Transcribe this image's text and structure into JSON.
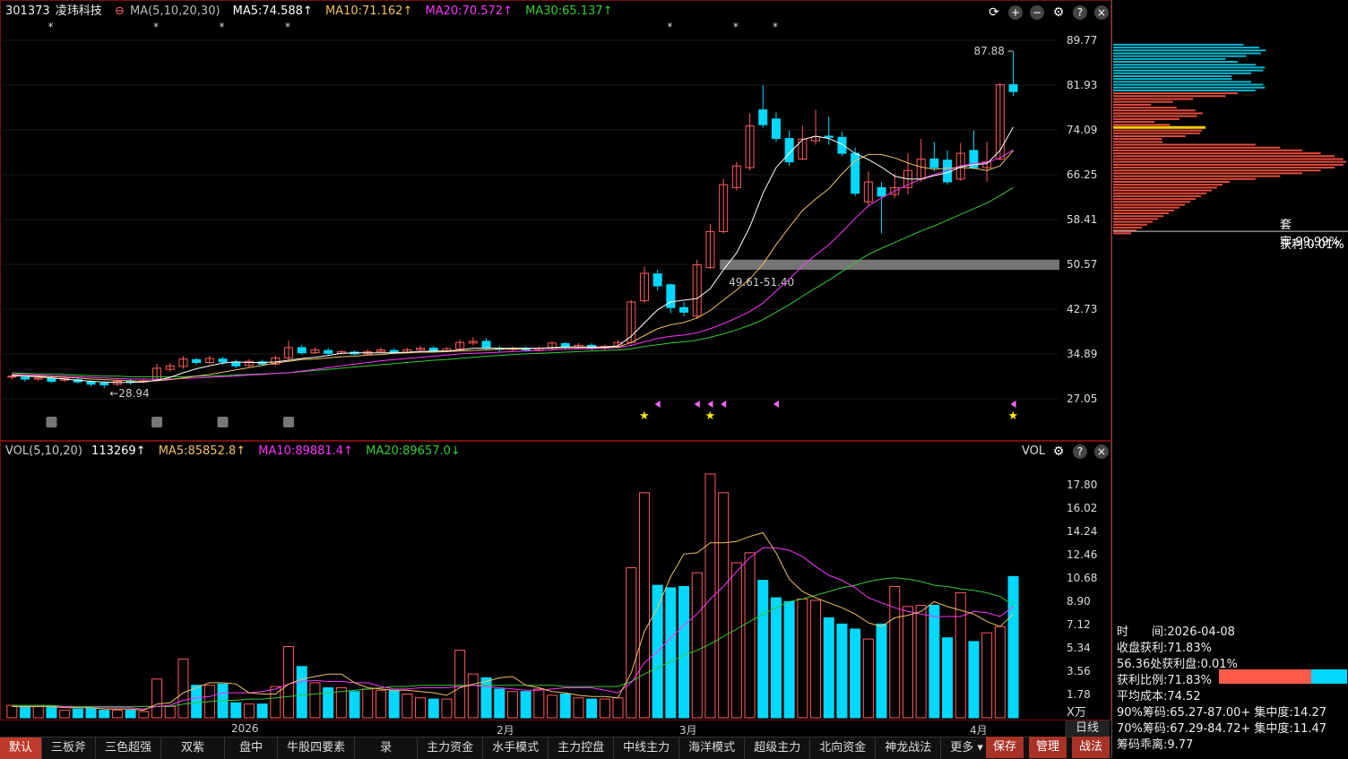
{
  "header": {
    "code": "301373",
    "name": "凌玮科技",
    "ma_label": "MA(5,10,20,30)",
    "ma5": "MA5:74.588↑",
    "ma10": "MA10:71.162↑",
    "ma20": "MA20:70.572↑",
    "ma30": "MA30:65.137↑"
  },
  "vol_header": {
    "label": "VOL(5,10,20)",
    "value": "113269↑",
    "ma5": "MA5:85852.8↑",
    "ma10": "MA10:89881.4↑",
    "ma20": "MA20:89657.0↓",
    "right_label": "VOL"
  },
  "colors": {
    "up": "#ff5b5b",
    "down": "#00d8ff",
    "ma5": "#ffffff",
    "ma10": "#f0c060",
    "ma20": "#ff33ff",
    "ma30": "#33cc33",
    "zone": "#888888"
  },
  "chart_data": {
    "type": "candlestick",
    "price_ticks": [
      "89.77",
      "81.93",
      "74.09",
      "66.25",
      "58.41",
      "50.57",
      "42.73",
      "34.89",
      "27.05"
    ],
    "vol_ticks": [
      "17.80",
      "16.02",
      "14.24",
      "12.46",
      "10.68",
      "8.90",
      "7.12",
      "5.34",
      "3.56",
      "1.78"
    ],
    "vol_unit": "X万",
    "x_labels": [
      "2026",
      "2月",
      "3月",
      "4月"
    ],
    "annotations": {
      "high": "87.88",
      "low": "28.94",
      "zone": "49.61-51.40"
    },
    "zone_range": [
      49.61,
      51.4
    ],
    "price_range": [
      22.0,
      93.0
    ],
    "vol_range": [
      0,
      19.5
    ],
    "candles": [
      [
        30.9,
        31.0,
        30.4,
        31.3,
        1.0
      ],
      [
        30.8,
        30.5,
        30.1,
        31.1,
        0.9
      ],
      [
        30.5,
        30.7,
        30.2,
        31.0,
        0.9
      ],
      [
        30.6,
        30.1,
        29.8,
        30.9,
        0.9
      ],
      [
        30.3,
        30.6,
        30.0,
        30.9,
        0.6
      ],
      [
        30.4,
        30.0,
        29.7,
        30.7,
        0.7
      ],
      [
        30.0,
        29.6,
        29.2,
        30.3,
        0.8
      ],
      [
        29.8,
        29.5,
        28.94,
        30.1,
        0.6
      ],
      [
        29.6,
        30.1,
        29.3,
        30.4,
        0.6
      ],
      [
        30.1,
        29.9,
        29.5,
        30.6,
        0.6
      ],
      [
        30.0,
        30.2,
        29.8,
        30.5,
        0.5
      ],
      [
        30.3,
        32.4,
        30.1,
        33.2,
        3.1
      ],
      [
        32.2,
        32.8,
        31.8,
        33.3,
        0.9
      ],
      [
        32.7,
        34.0,
        32.3,
        34.5,
        4.7
      ],
      [
        33.9,
        33.4,
        33.0,
        34.2,
        2.6
      ],
      [
        33.4,
        34.1,
        33.1,
        34.6,
        2.6
      ],
      [
        34.0,
        33.5,
        33.0,
        34.4,
        2.7
      ],
      [
        33.5,
        32.8,
        32.4,
        33.9,
        1.2
      ],
      [
        32.9,
        33.6,
        32.6,
        34.0,
        1.1
      ],
      [
        33.5,
        33.1,
        32.8,
        33.9,
        1.1
      ],
      [
        33.1,
        34.2,
        32.9,
        34.6,
        2.5
      ],
      [
        34.2,
        36.0,
        33.9,
        37.2,
        5.7
      ],
      [
        36.0,
        35.1,
        34.8,
        36.5,
        4.1
      ],
      [
        35.1,
        35.6,
        34.9,
        36.0,
        2.8
      ],
      [
        35.5,
        35.0,
        34.6,
        35.9,
        2.4
      ],
      [
        35.0,
        35.3,
        34.8,
        35.6,
        2.4
      ],
      [
        35.2,
        34.9,
        34.6,
        35.5,
        2.1
      ],
      [
        34.9,
        35.3,
        34.7,
        35.7,
        2.3
      ],
      [
        35.3,
        35.6,
        35.0,
        36.0,
        2.2
      ],
      [
        35.5,
        35.2,
        34.9,
        35.9,
        2.2
      ],
      [
        35.2,
        35.6,
        35.0,
        36.0,
        1.9
      ],
      [
        35.6,
        35.9,
        35.3,
        36.3,
        1.6
      ],
      [
        35.9,
        35.4,
        35.1,
        36.3,
        1.5
      ],
      [
        35.4,
        35.8,
        35.2,
        36.1,
        1.5
      ],
      [
        35.8,
        36.9,
        35.6,
        37.4,
        5.4
      ],
      [
        36.8,
        37.1,
        36.4,
        37.8,
        3.5
      ],
      [
        37.1,
        35.9,
        35.6,
        37.7,
        3.2
      ],
      [
        35.9,
        35.7,
        35.3,
        36.3,
        2.3
      ],
      [
        35.7,
        35.9,
        35.4,
        36.2,
        2.1
      ],
      [
        35.9,
        35.6,
        35.3,
        36.2,
        2.1
      ],
      [
        35.6,
        35.9,
        35.3,
        36.2,
        2.3
      ],
      [
        35.9,
        36.8,
        35.7,
        37.1,
        1.8
      ],
      [
        36.7,
        36.0,
        35.6,
        37.0,
        1.9
      ],
      [
        36.0,
        36.4,
        35.7,
        36.8,
        1.6
      ],
      [
        36.4,
        35.9,
        35.6,
        36.8,
        1.5
      ],
      [
        35.9,
        36.2,
        35.6,
        36.5,
        1.5
      ],
      [
        36.2,
        36.9,
        35.9,
        37.3,
        1.6
      ],
      [
        36.9,
        44.0,
        36.7,
        44.3,
        12.0
      ],
      [
        44.2,
        49.0,
        43.8,
        50.2,
        18.0
      ],
      [
        48.9,
        46.8,
        46.0,
        49.6,
        10.6
      ],
      [
        47.0,
        43.0,
        42.0,
        47.2,
        10.4
      ],
      [
        43.0,
        42.2,
        41.5,
        44.0,
        10.5
      ],
      [
        41.5,
        50.5,
        41.0,
        51.4,
        11.6
      ],
      [
        50.0,
        56.3,
        49.8,
        57.6,
        19.5
      ],
      [
        56.3,
        64.5,
        56.0,
        65.5,
        18.0
      ],
      [
        64.0,
        67.8,
        63.5,
        68.5,
        12.4
      ],
      [
        67.5,
        74.8,
        67.0,
        77.0,
        13.2
      ],
      [
        77.6,
        75.0,
        74.5,
        82.0,
        11.0
      ],
      [
        76.0,
        72.6,
        72.0,
        77.2,
        9.6
      ],
      [
        72.6,
        68.5,
        67.8,
        74.0,
        9.3
      ],
      [
        69.0,
        72.5,
        68.8,
        74.8,
        9.5
      ],
      [
        72.2,
        72.9,
        71.5,
        77.6,
        9.4
      ],
      [
        73.0,
        72.8,
        71.5,
        76.4,
        8.0
      ],
      [
        72.8,
        70.0,
        69.5,
        73.8,
        7.5
      ],
      [
        70.0,
        63.0,
        62.5,
        71.0,
        7.1
      ],
      [
        61.5,
        65.0,
        60.8,
        66.8,
        6.3
      ],
      [
        64.0,
        62.5,
        56.0,
        65.0,
        7.5
      ],
      [
        62.8,
        64.0,
        62.2,
        66.5,
        10.5
      ],
      [
        64.0,
        67.0,
        62.8,
        70.0,
        8.9
      ],
      [
        65.5,
        69.0,
        65.0,
        72.5,
        9.0
      ],
      [
        69.0,
        67.5,
        66.8,
        72.0,
        9.0
      ],
      [
        68.8,
        65.0,
        64.5,
        70.5,
        6.4
      ],
      [
        65.5,
        70.0,
        65.2,
        71.8,
        10.0
      ],
      [
        70.5,
        67.5,
        67.2,
        74.0,
        6.1
      ],
      [
        67.5,
        68.5,
        65.0,
        72.0,
        6.8
      ],
      [
        69.0,
        82.0,
        68.8,
        82.3,
        7.3
      ],
      [
        82.0,
        80.8,
        80.0,
        87.88,
        11.3
      ]
    ],
    "ma5": [
      31.1,
      31.0,
      30.9,
      30.7,
      30.5,
      30.3,
      30.1,
      30.0,
      29.9,
      29.9,
      30.0,
      30.3,
      30.8,
      31.6,
      32.3,
      32.8,
      33.3,
      33.5,
      33.4,
      33.4,
      33.5,
      33.8,
      34.1,
      34.3,
      34.6,
      35.0,
      35.1,
      35.1,
      35.1,
      35.1,
      35.2,
      35.3,
      35.4,
      35.4,
      35.6,
      35.9,
      35.9,
      35.9,
      35.9,
      35.9,
      35.9,
      36.0,
      36.1,
      36.1,
      36.1,
      36.1,
      36.3,
      38.0,
      40.3,
      42.6,
      44.0,
      44.3,
      44.6,
      46.3,
      49.6,
      52.6,
      57.1,
      63.0,
      67.5,
      70.0,
      72.4,
      73.0,
      72.6,
      71.6,
      70.0,
      68.9,
      67.6,
      66.0,
      65.5,
      65.5,
      66.1,
      66.6,
      67.6,
      68.0,
      68.2,
      70.5,
      74.6
    ],
    "ma10": [
      31.2,
      31.1,
      31.0,
      30.9,
      30.8,
      30.7,
      30.5,
      30.4,
      30.3,
      30.2,
      30.1,
      30.2,
      30.4,
      30.7,
      31.0,
      31.3,
      31.7,
      32.1,
      32.5,
      32.9,
      33.3,
      33.6,
      33.9,
      34.0,
      34.2,
      34.4,
      34.5,
      34.7,
      34.8,
      35.0,
      35.1,
      35.2,
      35.2,
      35.3,
      35.4,
      35.5,
      35.6,
      35.7,
      35.7,
      35.8,
      35.9,
      35.9,
      36.0,
      36.0,
      36.0,
      36.0,
      36.1,
      36.9,
      38.1,
      39.3,
      40.0,
      40.4,
      41.2,
      42.5,
      44.3,
      46.1,
      48.0,
      50.6,
      54.0,
      57.1,
      60.0,
      62.0,
      63.8,
      66.4,
      68.7,
      69.8,
      69.8,
      69.2,
      68.3,
      67.6,
      67.2,
      67.4,
      67.5,
      67.4,
      67.0,
      67.8,
      70.5
    ],
    "ma20": [
      31.4,
      31.3,
      31.2,
      31.1,
      31.0,
      30.9,
      30.8,
      30.7,
      30.6,
      30.5,
      30.5,
      30.5,
      30.5,
      30.6,
      30.7,
      30.8,
      30.9,
      31.0,
      31.2,
      31.3,
      31.5,
      31.6,
      31.9,
      32.2,
      32.5,
      32.8,
      33.1,
      33.4,
      33.7,
      33.9,
      34.1,
      34.3,
      34.5,
      34.7,
      34.9,
      35.0,
      35.1,
      35.2,
      35.3,
      35.4,
      35.5,
      35.6,
      35.7,
      35.8,
      35.8,
      35.9,
      36.0,
      36.4,
      37.0,
      37.6,
      38.0,
      38.2,
      38.6,
      39.3,
      40.2,
      41.2,
      42.3,
      43.8,
      45.9,
      48.0,
      50.3,
      52.2,
      54.0,
      56.2,
      58.6,
      60.8,
      62.2,
      63.4,
      64.5,
      65.5,
      66.3,
      67.0,
      67.8,
      68.2,
      68.4,
      69.2,
      70.6
    ],
    "ma30": [
      31.6,
      31.5,
      31.4,
      31.4,
      31.3,
      31.2,
      31.1,
      31.0,
      31.0,
      30.9,
      30.9,
      30.9,
      30.9,
      30.9,
      31.0,
      31.0,
      31.1,
      31.2,
      31.3,
      31.4,
      31.5,
      31.6,
      31.8,
      32.0,
      32.2,
      32.4,
      32.6,
      32.8,
      33.0,
      33.2,
      33.4,
      33.6,
      33.8,
      33.9,
      34.1,
      34.3,
      34.5,
      34.6,
      34.8,
      34.9,
      35.0,
      35.1,
      35.2,
      35.3,
      35.4,
      35.5,
      35.6,
      35.8,
      36.2,
      36.5,
      36.8,
      37.0,
      37.3,
      37.8,
      38.4,
      39.1,
      39.9,
      40.9,
      42.2,
      43.5,
      45.0,
      46.4,
      47.8,
      49.3,
      50.9,
      52.3,
      53.4,
      54.4,
      55.4,
      56.4,
      57.3,
      58.3,
      59.3,
      60.3,
      61.3,
      62.6,
      64.0
    ],
    "vma5": [
      0.9,
      0.9,
      0.9,
      0.9,
      0.8,
      0.8,
      0.8,
      0.7,
      0.7,
      0.7,
      0.6,
      1.1,
      1.2,
      2.0,
      2.4,
      2.8,
      2.8,
      2.7,
      2.0,
      1.9,
      1.9,
      2.7,
      3.1,
      3.3,
      3.5,
      3.5,
      2.8,
      2.4,
      2.3,
      2.2,
      2.2,
      2.1,
      2.0,
      1.8,
      2.4,
      2.7,
      2.9,
      3.2,
      3.3,
      2.6,
      2.4,
      2.1,
      2.0,
      1.8,
      1.7,
      1.7,
      1.6,
      3.6,
      6.9,
      8.8,
      11.3,
      13.1,
      13.2,
      14.0,
      14.0,
      14.1,
      14.5,
      14.8,
      13.2,
      11.1,
      10.1,
      9.6,
      9.2,
      8.8,
      8.3,
      7.6,
      7.3,
      8.0,
      8.2,
      8.5,
      9.3,
      8.9,
      8.6,
      8.3,
      7.7,
      7.3,
      8.3
    ],
    "vma10": [
      0.9,
      0.9,
      0.9,
      0.9,
      0.9,
      0.8,
      0.8,
      0.8,
      0.8,
      0.8,
      0.7,
      0.9,
      1.0,
      1.4,
      1.6,
      1.7,
      2.0,
      2.0,
      2.0,
      2.1,
      2.3,
      2.7,
      2.9,
      3.0,
      2.9,
      2.9,
      2.8,
      2.8,
      2.5,
      2.3,
      2.3,
      2.4,
      2.4,
      2.4,
      2.5,
      2.6,
      2.5,
      2.4,
      2.3,
      2.2,
      2.2,
      2.3,
      2.4,
      2.4,
      2.4,
      2.2,
      2.0,
      2.8,
      4.4,
      5.3,
      6.4,
      7.4,
      8.3,
      9.5,
      10.5,
      11.7,
      12.8,
      13.6,
      13.6,
      13.4,
      12.9,
      12.1,
      11.4,
      11.0,
      10.4,
      9.6,
      9.2,
      8.8,
      8.5,
      8.3,
      8.1,
      8.1,
      8.1,
      8.5,
      8.4,
      8.1,
      8.9
    ],
    "vma20": [
      1.0,
      1.0,
      1.0,
      1.0,
      0.9,
      0.9,
      0.9,
      0.9,
      0.9,
      0.9,
      0.9,
      0.9,
      0.9,
      1.1,
      1.2,
      1.3,
      1.4,
      1.4,
      1.5,
      1.5,
      1.6,
      1.7,
      1.8,
      1.9,
      2.0,
      2.1,
      2.2,
      2.3,
      2.4,
      2.5,
      2.5,
      2.6,
      2.6,
      2.6,
      2.6,
      2.6,
      2.6,
      2.6,
      2.6,
      2.6,
      2.6,
      2.6,
      2.5,
      2.5,
      2.5,
      2.5,
      2.5,
      2.9,
      3.5,
      4.0,
      4.5,
      5.0,
      5.4,
      5.9,
      6.5,
      7.1,
      7.7,
      8.3,
      8.8,
      9.3,
      9.5,
      9.8,
      10.1,
      10.4,
      10.6,
      10.9,
      11.1,
      11.2,
      11.1,
      10.9,
      10.6,
      10.5,
      10.3,
      10.2,
      10.0,
      9.7,
      9.0
    ]
  },
  "side": {
    "trap": "套牢:99.99%",
    "profit": "获利:0.01%",
    "time_label": "时　　间:2026-04-08",
    "close_profit": "收盘获利:71.83%",
    "p1": "56.36处获利盘:0.01%",
    "ratio": "获利比例:71.83%",
    "ratio_value": 0.7183,
    "avg_cost": "平均成本:74.52",
    "c90": "90%筹码:65.27-87.00+ 集中度:14.27",
    "c70": "70%筹码:67.29-84.72+ 集中度:11.47",
    "dist": "筹码乖离:9.77"
  },
  "tabs": [
    "默认",
    "三板斧",
    "三色超强",
    "双紫",
    "盘中",
    "牛股四要素",
    "录",
    "主力资金",
    "水手模式",
    "主力控盘",
    "中线主力",
    "海洋模式",
    "超级主力",
    "北向资金",
    "神龙战法",
    "更多 ▾"
  ],
  "right_tabs": [
    "保存",
    "管理",
    "战法"
  ],
  "period": "日线"
}
